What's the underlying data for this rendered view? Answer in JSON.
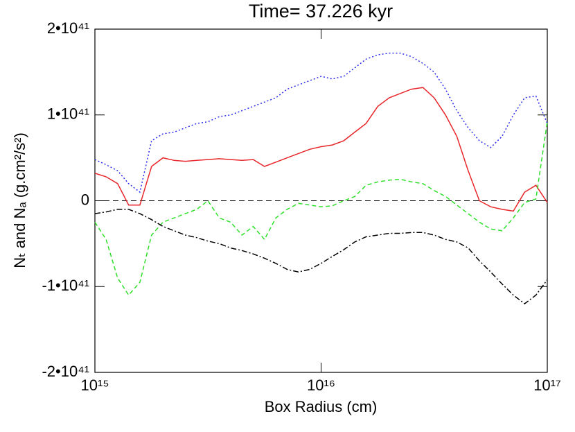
{
  "chart_data": {
    "type": "line",
    "title": "Time= 37.226 kyr",
    "x_label": "Box Radius (cm)",
    "y_label": "Nₜ and Nₐ (g.cm²/s²)",
    "log_x": true,
    "xlim": [
      1000000000000000.0,
      1e+17
    ],
    "xticks": [
      {
        "value": 1000000000000000.0,
        "label": "10¹⁵"
      },
      {
        "value": 1e+16,
        "label": "10¹⁶"
      },
      {
        "value": 1e+17,
        "label": "10¹⁷"
      }
    ],
    "ylim": [
      -2e+41,
      2e+41
    ],
    "yticks": [
      {
        "value": -2e+41,
        "label": "-2•10⁴¹"
      },
      {
        "value": -1e+41,
        "label": "-1•10⁴¹"
      },
      0,
      {
        "value": 1e+41,
        "label": "1•10⁴¹"
      },
      {
        "value": 2e+41,
        "label": "2•10⁴¹"
      }
    ],
    "hline": 0,
    "x": [
      1000000000000000.0,
      1120000000000000.0,
      1260000000000000.0,
      1410000000000000.0,
      1580000000000000.0,
      1780000000000000.0,
      2000000000000000.0,
      2240000000000000.0,
      2510000000000000.0,
      2820000000000000.0,
      3160000000000000.0,
      3550000000000000.0,
      3980000000000000.0,
      4470000000000000.0,
      5010000000000000.0,
      5620000000000000.0,
      6310000000000000.0,
      7080000000000000.0,
      7940000000000000.0,
      8910000000000000.0,
      1e+16,
      1.12e+16,
      1.26e+16,
      1.41e+16,
      1.58e+16,
      1.78e+16,
      2e+16,
      2.24e+16,
      2.51e+16,
      2.82e+16,
      3.16e+16,
      3.55e+16,
      3.98e+16,
      4.47e+16,
      5.01e+16,
      5.62e+16,
      6.31e+16,
      7.08e+16,
      7.94e+16,
      8.91e+16,
      1e+17
    ],
    "series": [
      {
        "color": "#e8262a",
        "dash": "none",
        "values": [
          3.2e+40,
          2.8e+40,
          2e+40,
          -5e+39,
          -5e+39,
          4e+40,
          5e+40,
          4.7e+40,
          4.6e+40,
          4.7e+40,
          4.8e+40,
          4.9e+40,
          4.8e+40,
          4.7e+40,
          4.8e+40,
          4e+40,
          4.5e+40,
          5e+40,
          5.5e+40,
          6e+40,
          6.3e+40,
          6.5e+40,
          7e+40,
          8e+40,
          9e+40,
          1.1e+41,
          1.2e+41,
          1.25e+41,
          1.3e+41,
          1.32e+41,
          1.2e+41,
          1e+41,
          7.5e+40,
          3.5e+40,
          0,
          -7e+39,
          -1e+40,
          -1.2e+40,
          1e+40,
          1.8e+40,
          -2e+39
        ]
      },
      {
        "color": "#2a2af0",
        "dash": "2,3",
        "values": [
          4.8e+40,
          4.2e+40,
          3.5e+40,
          2e+40,
          1e+40,
          7e+40,
          7.8e+40,
          8e+40,
          8.5e+40,
          9e+40,
          9.2e+40,
          9.8e+40,
          1e+41,
          1.05e+41,
          1.1e+41,
          1.15e+41,
          1.2e+41,
          1.3e+41,
          1.35e+41,
          1.4e+41,
          1.45e+41,
          1.42e+41,
          1.45e+41,
          1.55e+41,
          1.65e+41,
          1.7e+41,
          1.72e+41,
          1.72e+41,
          1.68e+41,
          1.6e+41,
          1.5e+41,
          1.3e+41,
          1.05e+41,
          8.5e+40,
          7e+40,
          6.2e+40,
          7.5e+40,
          1e+41,
          1.2e+41,
          1.22e+41,
          9e+40
        ]
      },
      {
        "color": "#2ee02a",
        "dash": "6,4",
        "values": [
          -2.5e+40,
          -4.5e+40,
          -9e+40,
          -1.1e+41,
          -9.5e+40,
          -4e+40,
          -2.5e+40,
          -2e+40,
          -1.5e+40,
          -1e+40,
          0,
          -2e+40,
          -2.5e+40,
          -4e+40,
          -3e+40,
          -4.5e+40,
          -2e+40,
          -1e+40,
          -3e+39,
          -5e+39,
          -7e+39,
          -6e+39,
          0,
          5e+39,
          1.8e+40,
          2.2e+40,
          2.4e+40,
          2.5e+40,
          2.2e+40,
          2e+40,
          1.2e+40,
          5e+39,
          -5e+39,
          -1.5e+40,
          -2.5e+40,
          -3.3e+40,
          -3.5e+40,
          -2e+40,
          -2e+39,
          2e+39,
          9.2e+40
        ]
      },
      {
        "color": "#000000",
        "dash": "8,3,2,3",
        "values": [
          -1.5e+40,
          -1.3e+40,
          -1e+40,
          -1e+40,
          -1.5e+40,
          -2.2e+40,
          -3e+40,
          -3.5e+40,
          -4e+40,
          -4.3e+40,
          -4.7e+40,
          -5e+40,
          -5.5e+40,
          -5.8e+40,
          -6.2e+40,
          -6.7e+40,
          -7.3e+40,
          -8e+40,
          -8.3e+40,
          -8e+40,
          -7.3e+40,
          -6.5e+40,
          -5.7e+40,
          -4.8e+40,
          -4.2e+40,
          -4e+40,
          -3.8e+40,
          -3.8e+40,
          -3.7e+40,
          -3.7e+40,
          -4e+40,
          -4.5e+40,
          -4.8e+40,
          -5.5e+40,
          -7e+40,
          -8.3e+40,
          -9.7e+40,
          -1.1e+41,
          -1.2e+41,
          -1.1e+41,
          -9.2e+40
        ]
      }
    ]
  }
}
